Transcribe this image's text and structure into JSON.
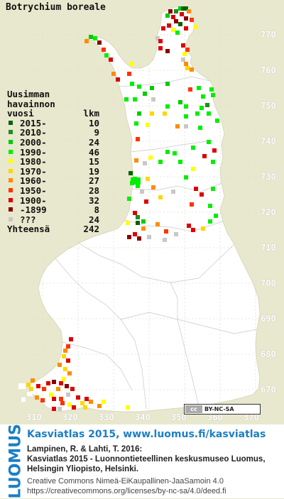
{
  "title": "Botrychium boreale",
  "legend": {
    "header1": "Uusimman",
    "header2": "havainnon",
    "header3_left": "vuosi",
    "header3_right": "lkm",
    "rows": [
      {
        "label": "2015-",
        "count": "10",
        "color": "#006400"
      },
      {
        "label": "2010-",
        "count": "9",
        "color": "#228b22"
      },
      {
        "label": "2000-",
        "count": "24",
        "color": "#00cc00"
      },
      {
        "label": "1990-",
        "count": "46",
        "color": "#00ee00"
      },
      {
        "label": "1980-",
        "count": "15",
        "color": "#ffff00"
      },
      {
        "label": "1970-",
        "count": "19",
        "color": "#ffd700"
      },
      {
        "label": "1960-",
        "count": "27",
        "color": "#ff8c00"
      },
      {
        "label": "1950-",
        "count": "28",
        "color": "#ff3300"
      },
      {
        "label": "1900-",
        "count": "32",
        "color": "#dd0000"
      },
      {
        "label": "-1899",
        "count": "8",
        "color": "#8b0000"
      },
      {
        "label": "???",
        "count": "24",
        "color": "#c8c8c8"
      }
    ],
    "total_label": "Yhteensä",
    "total_count": "242"
  },
  "y_ticks": [
    "770",
    "760",
    "750",
    "740",
    "730",
    "720",
    "710",
    "700",
    "690",
    "680",
    "670"
  ],
  "x_ticks": [
    "310",
    "320",
    "330",
    "340",
    "350",
    "360",
    "370"
  ],
  "license_badge": {
    "left": "cc",
    "right": "BY-NC-SA"
  },
  "footer": {
    "brand": "LUOMUS",
    "headline": "Kasviatlas 2015, www.luomus.fi/kasviatlas",
    "citation_line1": "Lampinen, R. & Lahti, T. 2016:",
    "citation_line2": "Kasviatlas 2015 - Luonnontieteellinen keskusmuseo Luomus,",
    "citation_line3": "Helsingin Yliopisto, Helsinki.",
    "license_line1": "Creative Commons Nimeä-EiKaupallinen-JaaSamoin 4.0",
    "license_line2": "https://creativecommons.org/licenses/by-nc-sa/4.0/deed.fi"
  },
  "colors": {
    "background": "#e8e8ce",
    "land": "#ffffff",
    "accent": "#1a7fc6"
  }
}
